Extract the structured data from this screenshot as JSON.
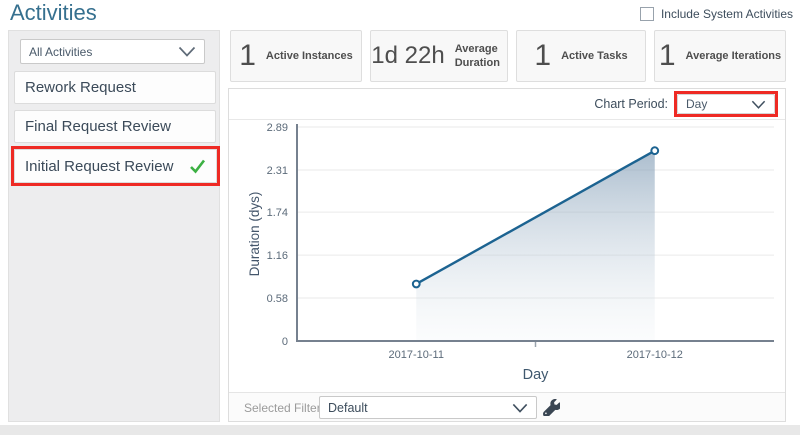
{
  "header": {
    "title": "Activities",
    "system_activities": {
      "label": "Include System Activities",
      "checked": false
    }
  },
  "sidebar": {
    "activity_filter": {
      "value": "All Activities"
    },
    "items": [
      {
        "label": "Rework Request",
        "selected": false
      },
      {
        "label": "Final Request Review",
        "selected": false
      },
      {
        "label": "Initial Request Review",
        "selected": true,
        "highlighted": true
      }
    ]
  },
  "stats": [
    {
      "value": "1",
      "label": "Active Instances"
    },
    {
      "value": "1d 22h",
      "label": "Average Duration"
    },
    {
      "value": "1",
      "label": "Active Tasks"
    },
    {
      "value": "1",
      "label": "Average Iterations"
    }
  ],
  "chart_period": {
    "label": "Chart Period:",
    "value": "Day",
    "highlighted": true
  },
  "chart_data": {
    "type": "area",
    "x": [
      "2017-10-11",
      "2017-10-12"
    ],
    "values": [
      0.77,
      2.57
    ],
    "xlabel": "Day",
    "ylabel": "Duration (dys)",
    "ylim": [
      0,
      2.89
    ],
    "yticks": [
      0,
      0.58,
      1.16,
      1.74,
      2.31,
      2.89
    ],
    "grid": true,
    "legend": "none",
    "line_color": "#1c6391",
    "point_fill": "#ffffff",
    "area_top_color": "rgba(120,149,176,0.62)",
    "area_bottom_color": "rgba(235,240,244,0.18)"
  },
  "filter_bar": {
    "label": "Selected Filter:",
    "value": "Default",
    "settings_icon": "wrench-icon"
  },
  "colors": {
    "title_blue": "#36708f",
    "highlight_red": "#ee2a24",
    "check_green": "#3cb043",
    "line_blue": "#1c6391",
    "axis_gray": "#76818f"
  }
}
